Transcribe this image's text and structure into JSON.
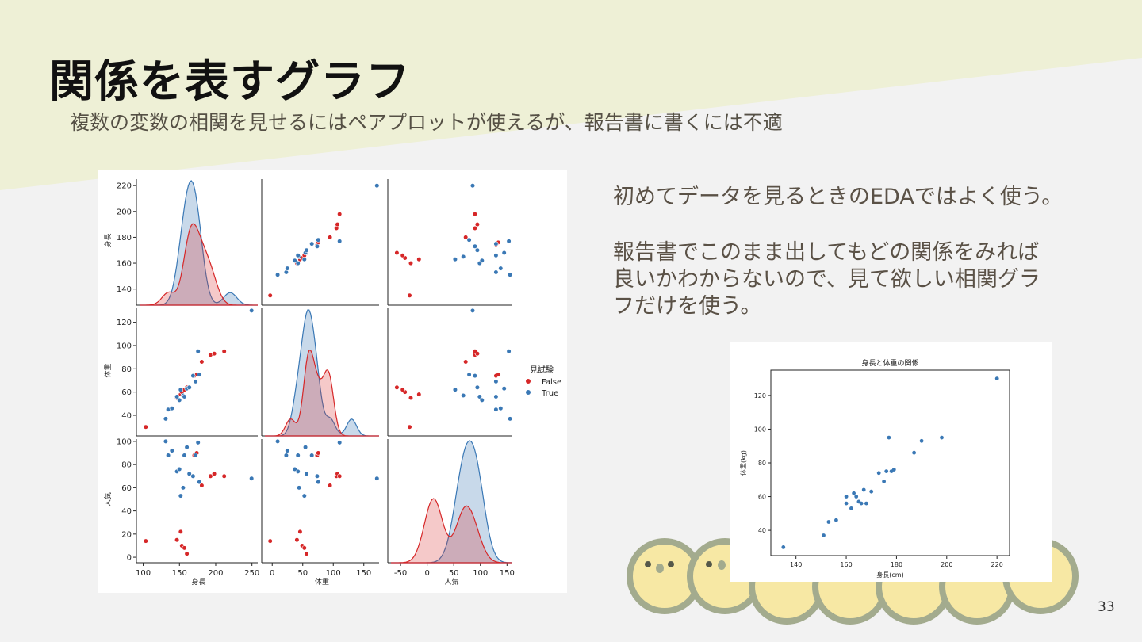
{
  "slide": {
    "title": "関係を表すグラフ",
    "subtitle": "複数の変数の相関を見せるにはペアプロットが使えるが、報告書に書くには不適",
    "note_line1": "初めてデータを見るときのEDAではよく使う。",
    "note_line2": "報告書でこのまま出してもどの関係をみれば",
    "note_line3": "良いかわからないので、見て欲しい相関グラ",
    "note_line4": "フだけを使う。",
    "page_number": "33"
  },
  "colors": {
    "accent_band": "#eef0d6",
    "false_color": "#d62728",
    "true_color": "#3a78b5",
    "text": "#5a5146"
  },
  "chart_data": [
    {
      "type": "scatter",
      "kind": "pairplot",
      "variables": [
        "身長",
        "体重",
        "人気"
      ],
      "hue_title": "見試験",
      "hue_levels": [
        "False",
        "True"
      ],
      "axis_ranges": {
        "身長": [
          130,
          225
        ],
        "体重": [
          25,
          132
        ],
        "人気": [
          -2,
          102
        ]
      },
      "axis_ticks": {
        "身長": [
          140,
          160,
          180,
          200,
          220
        ],
        "体重": [
          40,
          60,
          80,
          100,
          120
        ],
        "人気": [
          0,
          20,
          40,
          60,
          80,
          100
        ]
      },
      "diag_x_ticks": {
        "身長": [
          100,
          150,
          200,
          250
        ],
        "体重": [
          0,
          50,
          100,
          150
        ],
        "人気": [
          -50,
          0,
          50,
          100,
          150
        ]
      },
      "diag_x_ranges": {
        "身長": [
          95,
          258
        ],
        "体重": [
          -12,
          175
        ],
        "人気": [
          -68,
          160
        ]
      },
      "points": [
        {
          "h": 135,
          "w": 30,
          "p": 14,
          "g": "False"
        },
        {
          "h": 160,
          "w": 55,
          "p": 15,
          "g": "False"
        },
        {
          "h": 163,
          "w": 58,
          "p": 22,
          "g": "False"
        },
        {
          "h": 164,
          "w": 60,
          "p": 10,
          "g": "False"
        },
        {
          "h": 166,
          "w": 62,
          "p": 8,
          "g": "False"
        },
        {
          "h": 168,
          "w": 64,
          "p": 3,
          "g": "False"
        },
        {
          "h": 174,
          "w": 74,
          "p": 88,
          "g": "False"
        },
        {
          "h": 176,
          "w": 75,
          "p": 90,
          "g": "False"
        },
        {
          "h": 180,
          "w": 86,
          "p": 62,
          "g": "False"
        },
        {
          "h": 187,
          "w": 92,
          "p": 70,
          "g": "False"
        },
        {
          "h": 190,
          "w": 93,
          "p": 72,
          "g": "False"
        },
        {
          "h": 198,
          "w": 95,
          "p": 70,
          "g": "False"
        },
        {
          "h": 151,
          "w": 37,
          "p": 100,
          "g": "True"
        },
        {
          "h": 153,
          "w": 45,
          "p": 88,
          "g": "True"
        },
        {
          "h": 156,
          "w": 46,
          "p": 92,
          "g": "True"
        },
        {
          "h": 160,
          "w": 56,
          "p": 74,
          "g": "True"
        },
        {
          "h": 162,
          "w": 53,
          "p": 76,
          "g": "True"
        },
        {
          "h": 163,
          "w": 62,
          "p": 53,
          "g": "True"
        },
        {
          "h": 165,
          "w": 57,
          "p": 60,
          "g": "True"
        },
        {
          "h": 166,
          "w": 56,
          "p": 88,
          "g": "True"
        },
        {
          "h": 168,
          "w": 63,
          "p": 95,
          "g": "True"
        },
        {
          "h": 170,
          "w": 64,
          "p": 72,
          "g": "True"
        },
        {
          "h": 173,
          "w": 74,
          "p": 70,
          "g": "True"
        },
        {
          "h": 175,
          "w": 69,
          "p": 88,
          "g": "True"
        },
        {
          "h": 177,
          "w": 95,
          "p": 99,
          "g": "True"
        },
        {
          "h": 178,
          "w": 75,
          "p": 65,
          "g": "True"
        },
        {
          "h": 220,
          "w": 130,
          "p": 68,
          "g": "True"
        }
      ],
      "xlabels": [
        "身長",
        "体重",
        "人気"
      ],
      "ylabels": [
        "身長",
        "体重",
        "人気"
      ]
    },
    {
      "type": "scatter",
      "title": "身長と体重の関係",
      "xlabel": "身長(cm)",
      "ylabel": "体重(kg)",
      "xlim": [
        130,
        225
      ],
      "ylim": [
        25,
        135
      ],
      "xticks": [
        140,
        160,
        180,
        200,
        220
      ],
      "yticks": [
        40,
        60,
        80,
        100,
        120
      ],
      "x": [
        135,
        151,
        153,
        156,
        160,
        160,
        162,
        163,
        164,
        165,
        166,
        167,
        168,
        170,
        173,
        175,
        176,
        177,
        178,
        179,
        187,
        190,
        198,
        220
      ],
      "y": [
        30,
        37,
        45,
        46,
        56,
        60,
        53,
        62,
        60,
        57,
        56,
        64,
        56,
        63,
        74,
        69,
        75,
        95,
        75,
        76,
        86,
        93,
        95,
        130
      ]
    }
  ]
}
